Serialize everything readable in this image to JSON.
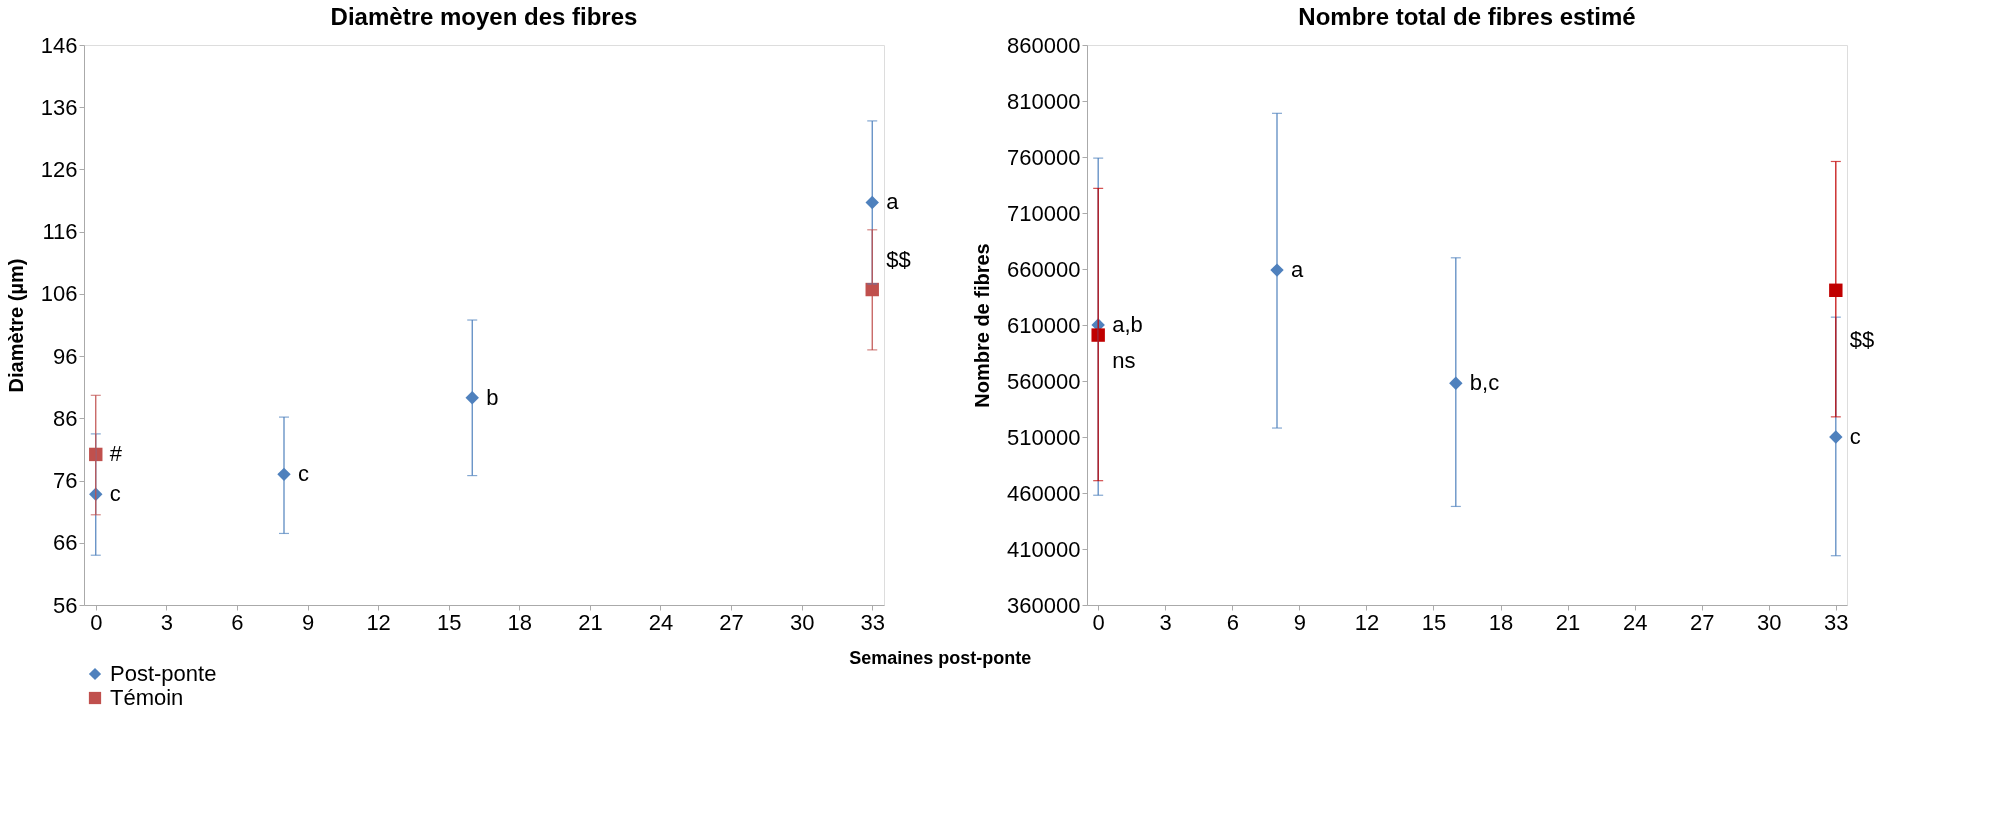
{
  "chart_data": [
    {
      "type": "scatter",
      "title": "Diamètre moyen des fibres",
      "ylabel": "Diamètre (µm)",
      "xlabel": "Semaines post-ponte",
      "xlim": [
        -0.5,
        33.5
      ],
      "xticks": [
        0,
        3,
        6,
        9,
        12,
        15,
        18,
        21,
        24,
        27,
        30,
        33
      ],
      "ylim": [
        56,
        146
      ],
      "yticks": [
        56,
        66,
        76,
        86,
        96,
        106,
        116,
        126,
        136,
        146
      ],
      "grid": false,
      "legend": "bottom left",
      "series": [
        {
          "name": "Post-ponte",
          "color": "#4f81bd",
          "marker": "diamond",
          "x": [
            0,
            8,
            16,
            33
          ],
          "values": [
            73.8,
            77.0,
            89.3,
            120.7
          ],
          "errors": [
            [
              64.0,
              83.5
            ],
            [
              67.5,
              86.2
            ],
            [
              76.8,
              101.8
            ],
            [
              107.6,
              133.8
            ]
          ]
        },
        {
          "name": "Témoin",
          "color": "#c0504d",
          "marker": "square",
          "x": [
            0,
            33
          ],
          "values": [
            80.2,
            106.7
          ],
          "errors": [
            [
              70.5,
              89.7
            ],
            [
              97.0,
              116.3
            ]
          ]
        }
      ],
      "annotations": [
        {
          "text": "c",
          "x": 0,
          "y": 73.8
        },
        {
          "text": "#",
          "x": 0,
          "y": 80.2
        },
        {
          "text": "c",
          "x": 8,
          "y": 77.0
        },
        {
          "text": "b",
          "x": 16,
          "y": 89.3
        },
        {
          "text": "a",
          "x": 33,
          "y": 120.7
        },
        {
          "text": "$$",
          "x": 33,
          "y": 111.4
        }
      ]
    },
    {
      "type": "scatter",
      "title": "Nombre total de fibres estimé",
      "ylabel": "Nombre de fibres",
      "xlim": [
        -0.5,
        33.5
      ],
      "xticks": [
        0,
        3,
        6,
        9,
        12,
        15,
        18,
        21,
        24,
        27,
        30,
        33
      ],
      "ylim": [
        360000,
        860000
      ],
      "yticks": [
        360000,
        410000,
        460000,
        510000,
        560000,
        610000,
        660000,
        710000,
        760000,
        810000,
        860000
      ],
      "grid": false,
      "series": [
        {
          "color": "#4f81bd",
          "marker": "diamond",
          "x": [
            0,
            8,
            16,
            33
          ],
          "values": [
            610000,
            659000,
            558000,
            510000
          ],
          "errors": [
            [
              458000,
              759000
            ],
            [
              518000,
              799000
            ],
            [
              448000,
              670000
            ],
            [
              404000,
              617000
            ]
          ]
        },
        {
          "color": "#c00000",
          "marker": "square",
          "x": [
            0,
            33
          ],
          "values": [
            601000,
            641000
          ],
          "errors": [
            [
              471000,
              732000
            ],
            [
              528000,
              756000
            ]
          ]
        }
      ],
      "annotations": [
        {
          "text": "a,b",
          "x": 0,
          "y": 610000
        },
        {
          "text": "ns",
          "x": 0,
          "y": 578000
        },
        {
          "text": "a",
          "x": 8,
          "y": 659000
        },
        {
          "text": "b,c",
          "x": 16,
          "y": 558000
        },
        {
          "text": "c",
          "x": 33,
          "y": 510000
        },
        {
          "text": "$$",
          "x": 33,
          "y": 597000
        }
      ]
    }
  ]
}
